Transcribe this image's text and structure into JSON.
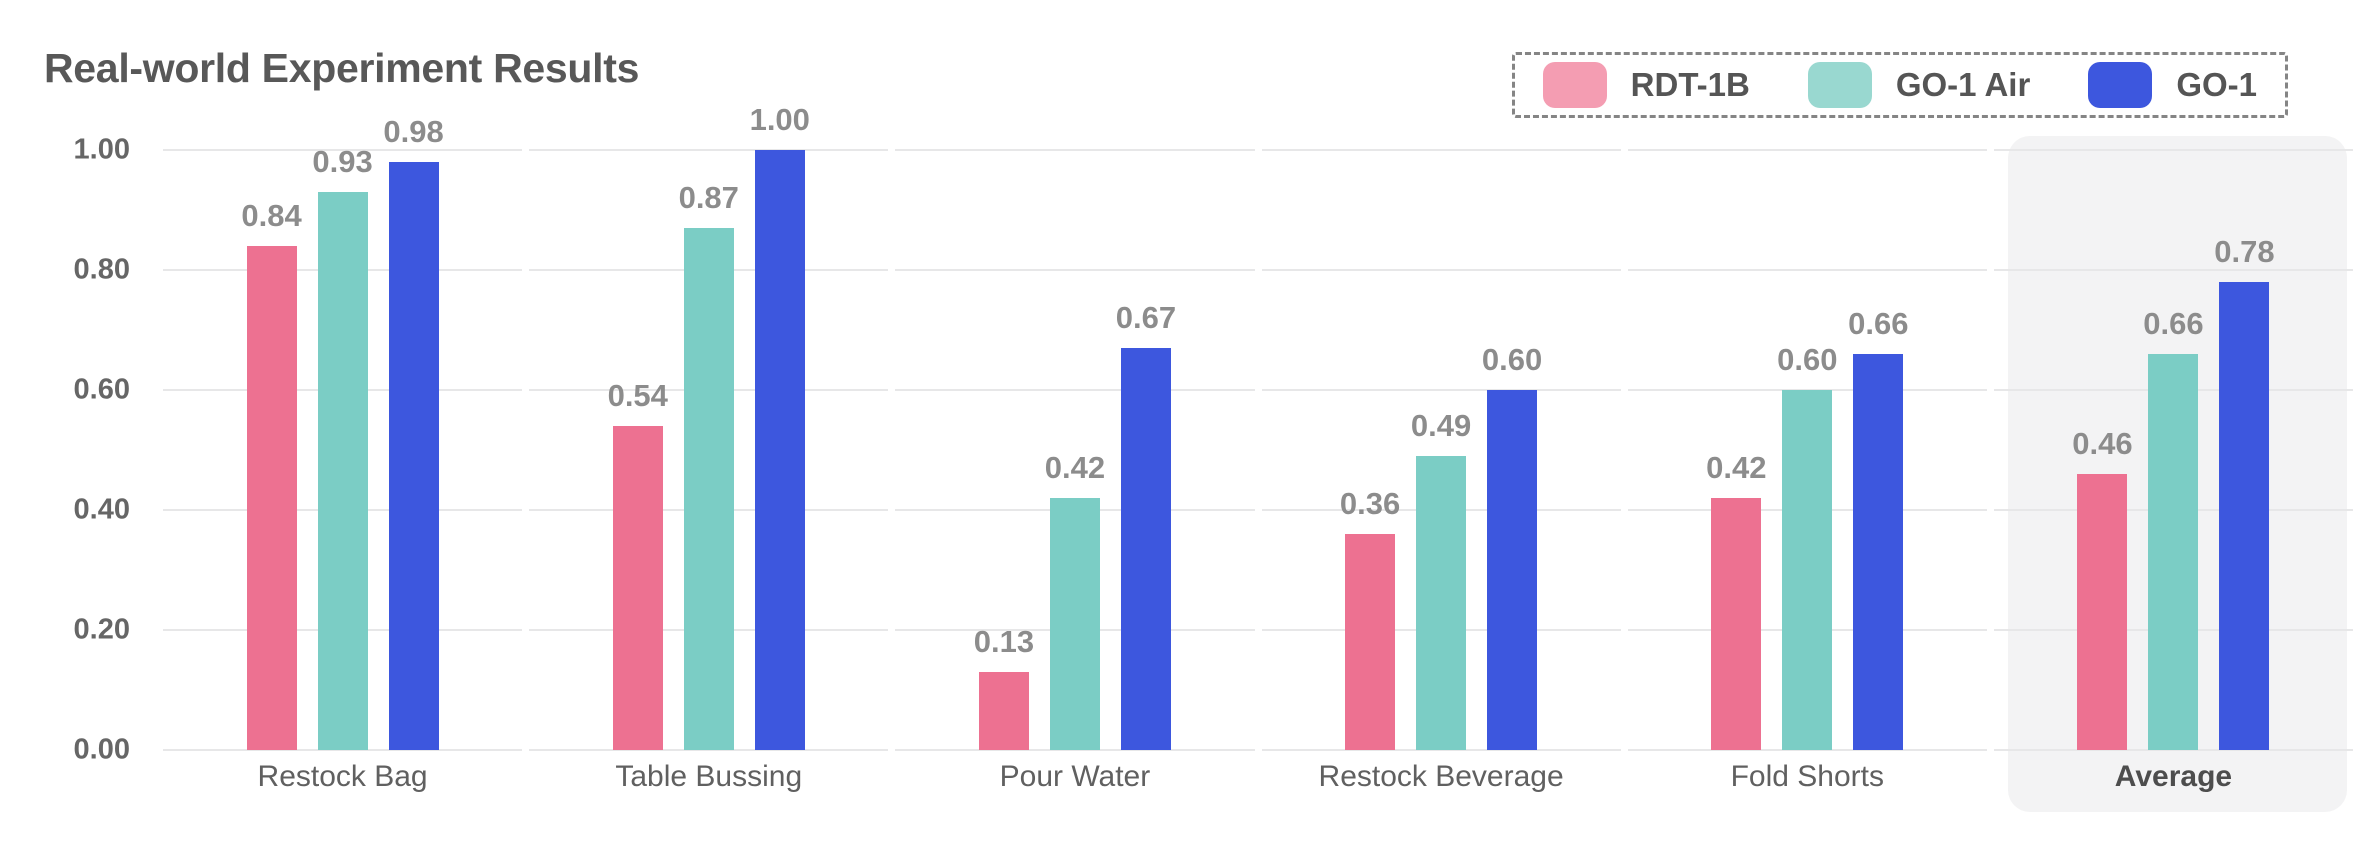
{
  "title": "Real-world Experiment Results",
  "legend": {
    "border_style": "dashed",
    "items": [
      {
        "label": "RDT-1B",
        "color": "#F49DB2"
      },
      {
        "label": "GO-1 Air",
        "color": "#99D8D0"
      },
      {
        "label": "GO-1",
        "color": "#3D57DE"
      }
    ]
  },
  "chart_data": {
    "type": "bar",
    "title": "Real-world Experiment Results",
    "xlabel": "",
    "ylabel": "",
    "ylim": [
      0,
      1
    ],
    "yticks": [
      "1.00",
      "0.80",
      "0.60",
      "0.40",
      "0.20",
      "0.00"
    ],
    "grid": "horizontal",
    "legend_position": "top-right",
    "highlight_category": "Average",
    "highlight_color": "#F3F3F4",
    "categories": [
      "Restock Bag",
      "Table Bussing",
      "Pour Water",
      "Restock Beverage",
      "Fold Shorts",
      "Average"
    ],
    "series": [
      {
        "name": "RDT-1B",
        "color": "#ED7191",
        "values": [
          0.84,
          0.54,
          0.13,
          0.36,
          0.42,
          0.46
        ]
      },
      {
        "name": "GO-1 Air",
        "color": "#7BCDC5",
        "values": [
          0.93,
          0.87,
          0.42,
          0.49,
          0.6,
          0.66
        ]
      },
      {
        "name": "GO-1",
        "color": "#3D57DE",
        "values": [
          0.98,
          1.0,
          0.67,
          0.6,
          0.66,
          0.78
        ]
      }
    ],
    "value_labels": [
      [
        "0.84",
        "0.93",
        "0.98"
      ],
      [
        "0.54",
        "0.87",
        "1.00"
      ],
      [
        "0.13",
        "0.42",
        "0.67"
      ],
      [
        "0.36",
        "0.49",
        "0.60"
      ],
      [
        "0.42",
        "0.60",
        "0.66"
      ],
      [
        "0.46",
        "0.66",
        "0.78"
      ]
    ]
  }
}
